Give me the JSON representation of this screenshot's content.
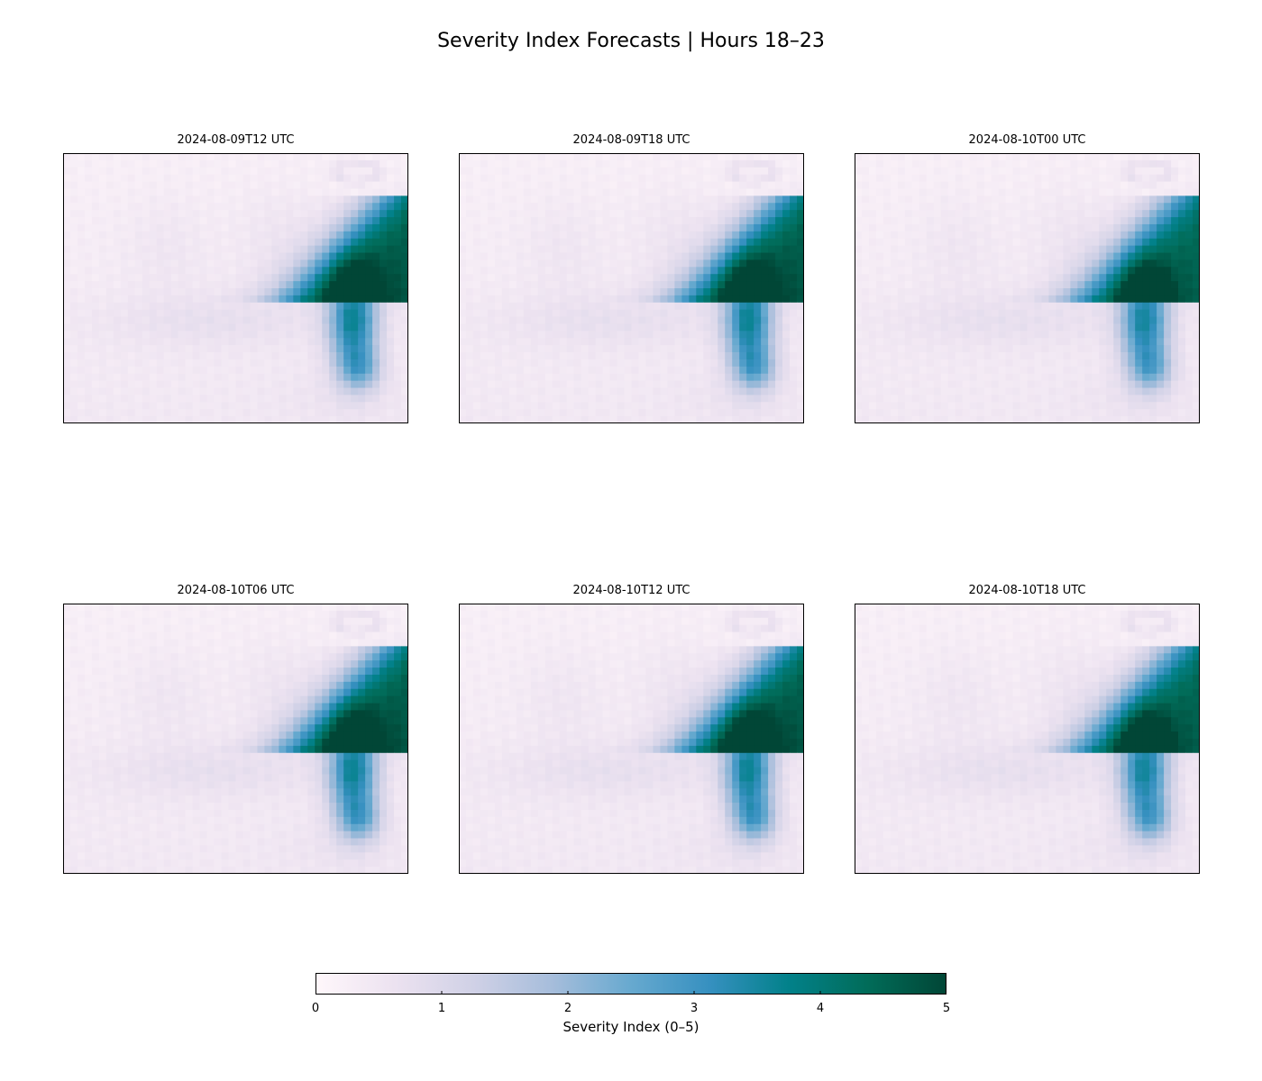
{
  "chart_data": {
    "type": "heatmap",
    "title": "Severity Index Forecasts | Hours 18–23",
    "panels": [
      {
        "title": "2024-08-09T12 UTC",
        "intensity": 1.0
      },
      {
        "title": "2024-08-09T18 UTC",
        "intensity": 1.0
      },
      {
        "title": "2024-08-10T00 UTC",
        "intensity": 0.96
      },
      {
        "title": "2024-08-10T06 UTC",
        "intensity": 1.0
      },
      {
        "title": "2024-08-10T12 UTC",
        "intensity": 1.0
      },
      {
        "title": "2024-08-10T18 UTC",
        "intensity": 0.97
      }
    ],
    "grid": {
      "cols": 48,
      "rows": 38
    },
    "colorbar": {
      "label": "Severity Index (0–5)",
      "range": [
        0,
        5
      ],
      "ticks": [
        "0",
        "1",
        "2",
        "3",
        "4",
        "5"
      ],
      "colormap": [
        "#fff7fb",
        "#ece2f0",
        "#d0d1e6",
        "#a6bddb",
        "#67a9cf",
        "#3690c0",
        "#02818a",
        "#016c59",
        "#014636"
      ]
    }
  }
}
